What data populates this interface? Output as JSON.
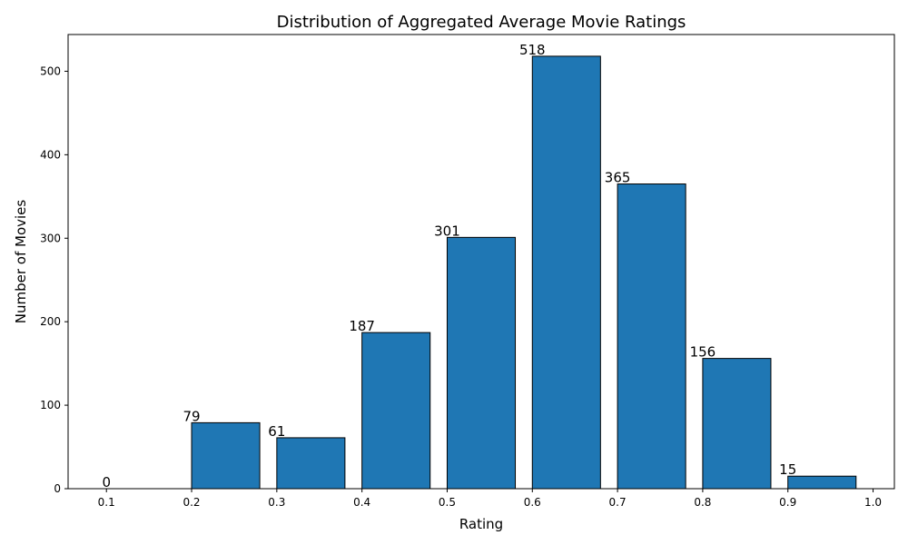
{
  "chart_data": {
    "type": "bar",
    "title": "Distribution of Aggregated Average Movie Ratings",
    "xlabel": "Rating",
    "ylabel": "Number of Movies",
    "bins": [
      {
        "start": 0.1,
        "end": 0.18,
        "value": 0
      },
      {
        "start": 0.2,
        "end": 0.28,
        "value": 79
      },
      {
        "start": 0.3,
        "end": 0.38,
        "value": 61
      },
      {
        "start": 0.4,
        "end": 0.48,
        "value": 187
      },
      {
        "start": 0.5,
        "end": 0.58,
        "value": 301
      },
      {
        "start": 0.6,
        "end": 0.68,
        "value": 518
      },
      {
        "start": 0.7,
        "end": 0.78,
        "value": 365
      },
      {
        "start": 0.8,
        "end": 0.88,
        "value": 156
      },
      {
        "start": 0.9,
        "end": 0.98,
        "value": 15
      }
    ],
    "data_labels": [
      "0",
      "79",
      "61",
      "187",
      "301",
      "518",
      "365",
      "156",
      "15"
    ],
    "xlim": [
      0.055,
      1.025
    ],
    "ylim": [
      0,
      544
    ],
    "xticks": [
      0.1,
      0.2,
      0.3,
      0.4,
      0.5,
      0.6,
      0.7,
      0.8,
      0.9,
      1.0
    ],
    "xtick_labels": [
      "0.1",
      "0.2",
      "0.3",
      "0.4",
      "0.5",
      "0.6",
      "0.7",
      "0.8",
      "0.9",
      "1.0"
    ],
    "yticks": [
      0,
      100,
      200,
      300,
      400,
      500
    ],
    "ytick_labels": [
      "0",
      "100",
      "200",
      "300",
      "400",
      "500"
    ],
    "bar_color": "#1f77b4",
    "edge_color": "#000000",
    "grid": false,
    "legend": false
  }
}
